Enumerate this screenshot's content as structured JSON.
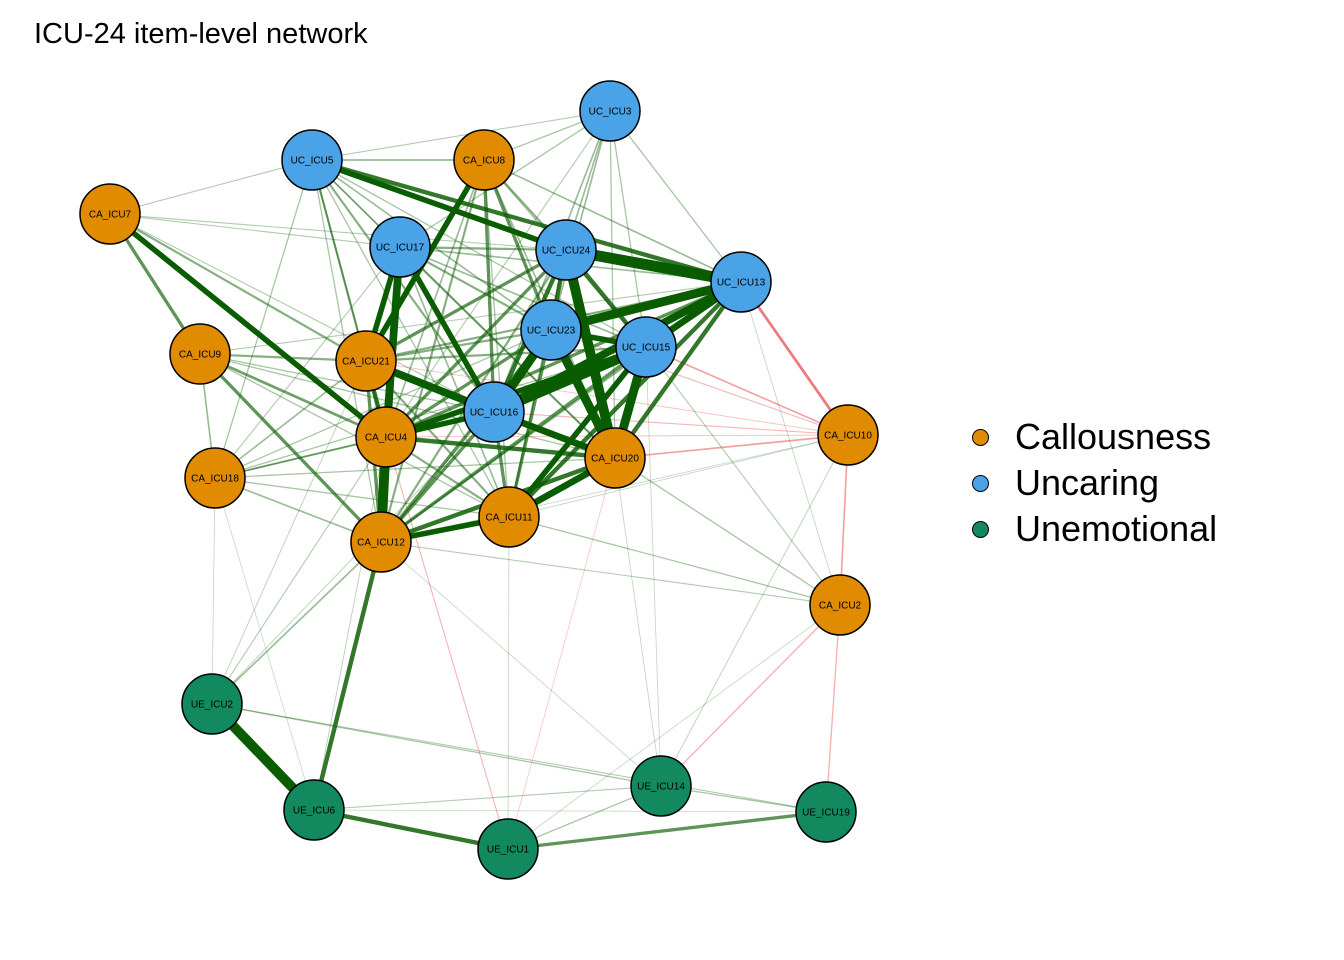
{
  "title": "ICU-24 item-level network",
  "groups": [
    {
      "id": "CA",
      "label": "Callousness",
      "color": "#E08B00"
    },
    {
      "id": "UC",
      "label": "Uncaring",
      "color": "#4AA3E6"
    },
    {
      "id": "UE",
      "label": "Unemotional",
      "color": "#12895F"
    }
  ],
  "edge_colors": {
    "positive": "#0A5C00",
    "negative": "#E3191C"
  },
  "nodes": [
    {
      "id": "UC_ICU3",
      "group": "UC"
    },
    {
      "id": "UC_ICU5",
      "group": "UC"
    },
    {
      "id": "CA_ICU8",
      "group": "CA"
    },
    {
      "id": "CA_ICU7",
      "group": "CA"
    },
    {
      "id": "UC_ICU17",
      "group": "UC"
    },
    {
      "id": "UC_ICU24",
      "group": "UC"
    },
    {
      "id": "UC_ICU13",
      "group": "UC"
    },
    {
      "id": "UC_ICU23",
      "group": "UC"
    },
    {
      "id": "UC_ICU15",
      "group": "UC"
    },
    {
      "id": "CA_ICU9",
      "group": "CA"
    },
    {
      "id": "CA_ICU21",
      "group": "CA"
    },
    {
      "id": "UC_ICU16",
      "group": "UC"
    },
    {
      "id": "CA_ICU4",
      "group": "CA"
    },
    {
      "id": "CA_ICU10",
      "group": "CA"
    },
    {
      "id": "CA_ICU20",
      "group": "CA"
    },
    {
      "id": "CA_ICU18",
      "group": "CA"
    },
    {
      "id": "CA_ICU11",
      "group": "CA"
    },
    {
      "id": "CA_ICU12",
      "group": "CA"
    },
    {
      "id": "CA_ICU2",
      "group": "CA"
    },
    {
      "id": "UE_ICU2",
      "group": "UE"
    },
    {
      "id": "UE_ICU14",
      "group": "UE"
    },
    {
      "id": "UE_ICU6",
      "group": "UE"
    },
    {
      "id": "UE_ICU19",
      "group": "UE"
    },
    {
      "id": "UE_ICU1",
      "group": "UE"
    }
  ],
  "edges": [
    {
      "from": "UC_ICU24",
      "to": "UC_ICU13",
      "sign": "positive",
      "weight": 10
    },
    {
      "from": "UC_ICU23",
      "to": "UC_ICU13",
      "sign": "positive",
      "weight": 8
    },
    {
      "from": "UC_ICU16",
      "to": "UC_ICU13",
      "sign": "positive",
      "weight": 7
    },
    {
      "from": "UC_ICU16",
      "to": "UC_ICU15",
      "sign": "positive",
      "weight": 9
    },
    {
      "from": "UC_ICU16",
      "to": "UC_ICU23",
      "sign": "positive",
      "weight": 8
    },
    {
      "from": "UC_ICU16",
      "to": "CA_ICU20",
      "sign": "positive",
      "weight": 6
    },
    {
      "from": "UC_ICU24",
      "to": "CA_ICU20",
      "sign": "positive",
      "weight": 9
    },
    {
      "from": "UC_ICU23",
      "to": "CA_ICU20",
      "sign": "positive",
      "weight": 8
    },
    {
      "from": "UC_ICU15",
      "to": "CA_ICU20",
      "sign": "positive",
      "weight": 8
    },
    {
      "from": "UC_ICU17",
      "to": "CA_ICU4",
      "sign": "positive",
      "weight": 7
    },
    {
      "from": "UC_ICU17",
      "to": "CA_ICU21",
      "sign": "positive",
      "weight": 5
    },
    {
      "from": "UC_ICU17",
      "to": "UC_ICU16",
      "sign": "positive",
      "weight": 5
    },
    {
      "from": "UC_ICU17",
      "to": "CA_ICU12",
      "sign": "positive",
      "weight": 5
    },
    {
      "from": "CA_ICU8",
      "to": "CA_ICU21",
      "sign": "positive",
      "weight": 5
    },
    {
      "from": "CA_ICU8",
      "to": "UC_ICU23",
      "sign": "positive",
      "weight": 3
    },
    {
      "from": "CA_ICU8",
      "to": "UC_ICU24",
      "sign": "positive",
      "weight": 2
    },
    {
      "from": "CA_ICU8",
      "to": "UC_ICU16",
      "sign": "positive",
      "weight": 3
    },
    {
      "from": "UC_ICU5",
      "to": "UC_ICU24",
      "sign": "positive",
      "weight": 5
    },
    {
      "from": "UC_ICU5",
      "to": "UC_ICU13",
      "sign": "positive",
      "weight": 4
    },
    {
      "from": "UC_ICU5",
      "to": "CA_ICU4",
      "sign": "positive",
      "weight": 2
    },
    {
      "from": "UC_ICU5",
      "to": "UC_ICU16",
      "sign": "positive",
      "weight": 2
    },
    {
      "from": "UC_ICU5",
      "to": "CA_ICU18",
      "sign": "positive",
      "weight": 1.2
    },
    {
      "from": "UC_ICU5",
      "to": "CA_ICU7",
      "sign": "positive",
      "weight": 1
    },
    {
      "from": "UC_ICU5",
      "to": "CA_ICU8",
      "sign": "positive",
      "weight": 1.5
    },
    {
      "from": "UC_ICU5",
      "to": "UC_ICU3",
      "sign": "positive",
      "weight": 1
    },
    {
      "from": "UC_ICU5",
      "to": "CA_ICU21",
      "sign": "positive",
      "weight": 1.5
    },
    {
      "from": "UC_ICU5",
      "to": "UC_ICU23",
      "sign": "positive",
      "weight": 1.5
    },
    {
      "from": "UC_ICU3",
      "to": "UC_ICU24",
      "sign": "positive",
      "weight": 1.5
    },
    {
      "from": "UC_ICU3",
      "to": "UC_ICU13",
      "sign": "positive",
      "weight": 1.2
    },
    {
      "from": "UC_ICU3",
      "to": "CA_ICU8",
      "sign": "positive",
      "weight": 1.2
    },
    {
      "from": "UC_ICU3",
      "to": "UC_ICU17",
      "sign": "positive",
      "weight": 1.2
    },
    {
      "from": "UC_ICU3",
      "to": "UC_ICU16",
      "sign": "positive",
      "weight": 1.5
    },
    {
      "from": "UC_ICU3",
      "to": "CA_ICU20",
      "sign": "positive",
      "weight": 1.2
    },
    {
      "from": "UC_ICU3",
      "to": "UC_ICU23",
      "sign": "positive",
      "weight": 1.5
    },
    {
      "from": "UC_ICU3",
      "to": "UC_ICU15",
      "sign": "positive",
      "weight": 1.2
    },
    {
      "from": "UC_ICU3",
      "to": "CA_ICU4",
      "sign": "positive",
      "weight": 1
    },
    {
      "from": "CA_ICU7",
      "to": "CA_ICU4",
      "sign": "positive",
      "weight": 5
    },
    {
      "from": "CA_ICU7",
      "to": "CA_ICU9",
      "sign": "positive",
      "weight": 3
    },
    {
      "from": "CA_ICU7",
      "to": "CA_ICU21",
      "sign": "positive",
      "weight": 2
    },
    {
      "from": "CA_ICU7",
      "to": "UC_ICU24",
      "sign": "positive",
      "weight": 1
    },
    {
      "from": "CA_ICU7",
      "to": "UC_ICU16",
      "sign": "positive",
      "weight": 1
    },
    {
      "from": "CA_ICU7",
      "to": "UC_ICU17",
      "sign": "positive",
      "weight": 1
    },
    {
      "from": "CA_ICU9",
      "to": "CA_ICU4",
      "sign": "positive",
      "weight": 2.5
    },
    {
      "from": "CA_ICU9",
      "to": "CA_ICU21",
      "sign": "positive",
      "weight": 2
    },
    {
      "from": "CA_ICU9",
      "to": "CA_ICU18",
      "sign": "positive",
      "weight": 1.5
    },
    {
      "from": "CA_ICU9",
      "to": "CA_ICU12",
      "sign": "positive",
      "weight": 3
    },
    {
      "from": "CA_ICU9",
      "to": "CA_ICU20",
      "sign": "positive",
      "weight": 1.2
    },
    {
      "from": "CA_ICU9",
      "to": "UC_ICU16",
      "sign": "positive",
      "weight": 1.2
    },
    {
      "from": "CA_ICU9",
      "to": "CA_ICU11",
      "sign": "positive",
      "weight": 1.2
    },
    {
      "from": "CA_ICU21",
      "to": "CA_ICU4",
      "sign": "positive",
      "weight": 4
    },
    {
      "from": "CA_ICU21",
      "to": "UC_ICU16",
      "sign": "positive",
      "weight": 7
    },
    {
      "from": "CA_ICU21",
      "to": "CA_ICU12",
      "sign": "positive",
      "weight": 3
    },
    {
      "from": "CA_ICU21",
      "to": "UC_ICU24",
      "sign": "positive",
      "weight": 3
    },
    {
      "from": "CA_ICU21",
      "to": "UC_ICU23",
      "sign": "positive",
      "weight": 2
    },
    {
      "from": "CA_ICU21",
      "to": "CA_ICU11",
      "sign": "positive",
      "weight": 2
    },
    {
      "from": "CA_ICU21",
      "to": "CA_ICU20",
      "sign": "positive",
      "weight": 2.5
    },
    {
      "from": "CA_ICU21",
      "to": "UC_ICU13",
      "sign": "positive",
      "weight": 2
    },
    {
      "from": "CA_ICU4",
      "to": "CA_ICU12",
      "sign": "positive",
      "weight": 9
    },
    {
      "from": "CA_ICU4",
      "to": "UC_ICU16",
      "sign": "positive",
      "weight": 5
    },
    {
      "from": "CA_ICU4",
      "to": "CA_ICU20",
      "sign": "positive",
      "weight": 4
    },
    {
      "from": "CA_ICU4",
      "to": "UC_ICU15",
      "sign": "positive",
      "weight": 5
    },
    {
      "from": "CA_ICU4",
      "to": "UC_ICU23",
      "sign": "positive",
      "weight": 3
    },
    {
      "from": "CA_ICU4",
      "to": "UC_ICU24",
      "sign": "positive",
      "weight": 3
    },
    {
      "from": "CA_ICU4",
      "to": "CA_ICU11",
      "sign": "positive",
      "weight": 2
    },
    {
      "from": "CA_ICU4",
      "to": "CA_ICU18",
      "sign": "positive",
      "weight": 1.5
    },
    {
      "from": "CA_ICU4",
      "to": "UC_ICU13",
      "sign": "positive",
      "weight": 3
    },
    {
      "from": "CA_ICU12",
      "to": "CA_ICU11",
      "sign": "positive",
      "weight": 5
    },
    {
      "from": "CA_ICU12",
      "to": "CA_ICU20",
      "sign": "positive",
      "weight": 4
    },
    {
      "from": "CA_ICU12",
      "to": "UC_ICU16",
      "sign": "positive",
      "weight": 3
    },
    {
      "from": "CA_ICU12",
      "to": "UC_ICU23",
      "sign": "positive",
      "weight": 3
    },
    {
      "from": "CA_ICU12",
      "to": "UC_ICU15",
      "sign": "positive",
      "weight": 3
    },
    {
      "from": "CA_ICU12",
      "to": "CA_ICU18",
      "sign": "positive",
      "weight": 1.5
    },
    {
      "from": "CA_ICU12",
      "to": "UE_ICU6",
      "sign": "positive",
      "weight": 4
    },
    {
      "from": "CA_ICU12",
      "to": "UE_ICU2",
      "sign": "positive",
      "weight": 1.5
    },
    {
      "from": "CA_ICU12",
      "to": "UC_ICU24",
      "sign": "positive",
      "weight": 2
    },
    {
      "from": "CA_ICU11",
      "to": "CA_ICU20",
      "sign": "positive",
      "weight": 6
    },
    {
      "from": "CA_ICU11",
      "to": "UC_ICU15",
      "sign": "positive",
      "weight": 5
    },
    {
      "from": "CA_ICU11",
      "to": "UC_ICU13",
      "sign": "positive",
      "weight": 4
    },
    {
      "from": "CA_ICU11",
      "to": "UC_ICU23",
      "sign": "positive",
      "weight": 3
    },
    {
      "from": "CA_ICU11",
      "to": "UC_ICU16",
      "sign": "positive",
      "weight": 3
    },
    {
      "from": "CA_ICU11",
      "to": "UC_ICU24",
      "sign": "positive",
      "weight": 2
    },
    {
      "from": "CA_ICU11",
      "to": "CA_ICU18",
      "sign": "positive",
      "weight": 1.2
    },
    {
      "from": "CA_ICU18",
      "to": "CA_ICU21",
      "sign": "positive",
      "weight": 1.5
    },
    {
      "from": "CA_ICU18",
      "to": "UC_ICU16",
      "sign": "positive",
      "weight": 1.5
    },
    {
      "from": "CA_ICU18",
      "to": "CA_ICU20",
      "sign": "positive",
      "weight": 1.2
    },
    {
      "from": "CA_ICU18",
      "to": "UC_ICU23",
      "sign": "positive",
      "weight": 1.2
    },
    {
      "from": "CA_ICU18",
      "to": "UC_ICU15",
      "sign": "positive",
      "weight": 1.2
    },
    {
      "from": "CA_ICU18",
      "to": "UC_ICU17",
      "sign": "positive",
      "weight": 1
    },
    {
      "from": "UC_ICU24",
      "to": "UC_ICU23",
      "sign": "positive",
      "weight": 4
    },
    {
      "from": "UC_ICU24",
      "to": "UC_ICU15",
      "sign": "positive",
      "weight": 4
    },
    {
      "from": "UC_ICU24",
      "to": "UC_ICU16",
      "sign": "positive",
      "weight": 4
    },
    {
      "from": "UC_ICU24",
      "to": "UC_ICU17",
      "sign": "positive",
      "weight": 2
    },
    {
      "from": "UC_ICU23",
      "to": "UC_ICU15",
      "sign": "positive",
      "weight": 5
    },
    {
      "from": "UC_ICU23",
      "to": "UC_ICU17",
      "sign": "positive",
      "weight": 2
    },
    {
      "from": "UC_ICU15",
      "to": "UC_ICU13",
      "sign": "positive",
      "weight": 6
    },
    {
      "from": "UC_ICU13",
      "to": "CA_ICU20",
      "sign": "positive",
      "weight": 4
    },
    {
      "from": "UC_ICU13",
      "to": "CA_ICU10",
      "sign": "negative",
      "weight": 2.5
    },
    {
      "from": "UC_ICU15",
      "to": "CA_ICU10",
      "sign": "negative",
      "weight": 1.5
    },
    {
      "from": "UC_ICU23",
      "to": "CA_ICU10",
      "sign": "negative",
      "weight": 1
    },
    {
      "from": "UC_ICU16",
      "to": "CA_ICU10",
      "sign": "negative",
      "weight": 1
    },
    {
      "from": "CA_ICU20",
      "to": "CA_ICU10",
      "sign": "negative",
      "weight": 1.5
    },
    {
      "from": "CA_ICU4",
      "to": "CA_ICU10",
      "sign": "negative",
      "weight": 0.8
    },
    {
      "from": "CA_ICU21",
      "to": "CA_ICU10",
      "sign": "negative",
      "weight": 0.8
    },
    {
      "from": "CA_ICU10",
      "to": "CA_ICU2",
      "sign": "negative",
      "weight": 1.5
    },
    {
      "from": "CA_ICU10",
      "to": "UE_ICU14",
      "sign": "positive",
      "weight": 0.8
    },
    {
      "from": "CA_ICU10",
      "to": "CA_ICU11",
      "sign": "positive",
      "weight": 0.7
    },
    {
      "from": "CA_ICU10",
      "to": "CA_ICU12",
      "sign": "positive",
      "weight": 0.6
    },
    {
      "from": "CA_ICU2",
      "to": "CA_ICU20",
      "sign": "positive",
      "weight": 1.2
    },
    {
      "from": "CA_ICU2",
      "to": "CA_ICU11",
      "sign": "positive",
      "weight": 1.2
    },
    {
      "from": "CA_ICU2",
      "to": "CA_ICU12",
      "sign": "positive",
      "weight": 1
    },
    {
      "from": "CA_ICU2",
      "to": "UC_ICU15",
      "sign": "positive",
      "weight": 1
    },
    {
      "from": "CA_ICU2",
      "to": "UC_ICU13",
      "sign": "positive",
      "weight": 0.7
    },
    {
      "from": "CA_ICU2",
      "to": "UE_ICU14",
      "sign": "negative",
      "weight": 1.2
    },
    {
      "from": "CA_ICU2",
      "to": "UE_ICU19",
      "sign": "negative",
      "weight": 1.2
    },
    {
      "from": "CA_ICU2",
      "to": "UE_ICU1",
      "sign": "positive",
      "weight": 0.6
    },
    {
      "from": "UE_ICU2",
      "to": "UE_ICU6",
      "sign": "positive",
      "weight": 9
    },
    {
      "from": "UE_ICU2",
      "to": "UE_ICU14",
      "sign": "positive",
      "weight": 1.2
    },
    {
      "from": "UE_ICU2",
      "to": "UE_ICU19",
      "sign": "positive",
      "weight": 1
    },
    {
      "from": "UE_ICU2",
      "to": "CA_ICU4",
      "sign": "positive",
      "weight": 1
    },
    {
      "from": "UE_ICU2",
      "to": "CA_ICU21",
      "sign": "positive",
      "weight": 0.8
    },
    {
      "from": "UE_ICU2",
      "to": "UC_ICU16",
      "sign": "positive",
      "weight": 0.8
    },
    {
      "from": "UE_ICU6",
      "to": "UE_ICU1",
      "sign": "positive",
      "weight": 4
    },
    {
      "from": "UE_ICU6",
      "to": "UE_ICU14",
      "sign": "positive",
      "weight": 1
    },
    {
      "from": "UE_ICU6",
      "to": "CA_ICU4",
      "sign": "positive",
      "weight": 0.8
    },
    {
      "from": "UE_ICU6",
      "to": "UE_ICU19",
      "sign": "positive",
      "weight": 0.6
    },
    {
      "from": "UE_ICU1",
      "to": "UE_ICU19",
      "sign": "positive",
      "weight": 3
    },
    {
      "from": "UE_ICU1",
      "to": "UE_ICU14",
      "sign": "positive",
      "weight": 1.2
    },
    {
      "from": "UE_ICU1",
      "to": "CA_ICU4",
      "sign": "negative",
      "weight": 1
    },
    {
      "from": "UE_ICU1",
      "to": "CA_ICU20",
      "sign": "negative",
      "weight": 0.6
    },
    {
      "from": "UE_ICU1",
      "to": "CA_ICU11",
      "sign": "positive",
      "weight": 0.6
    },
    {
      "from": "UE_ICU14",
      "to": "UE_ICU19",
      "sign": "positive",
      "weight": 1.2
    },
    {
      "from": "UE_ICU14",
      "to": "CA_ICU20",
      "sign": "positive",
      "weight": 0.7
    },
    {
      "from": "UE_ICU14",
      "to": "CA_ICU12",
      "sign": "positive",
      "weight": 0.6
    },
    {
      "from": "UE_ICU14",
      "to": "UC_ICU15",
      "sign": "positive",
      "weight": 0.6
    },
    {
      "from": "CA_ICU18",
      "to": "UE_ICU2",
      "sign": "positive",
      "weight": 0.6
    },
    {
      "from": "CA_ICU18",
      "to": "UE_ICU6",
      "sign": "positive",
      "weight": 0.5
    },
    {
      "from": "UC_ICU13",
      "to": "UC_ICU17",
      "sign": "positive",
      "weight": 1.5
    },
    {
      "from": "UC_ICU13",
      "to": "CA_ICU9",
      "sign": "positive",
      "weight": 1
    },
    {
      "from": "UC_ICU13",
      "to": "CA_ICU12",
      "sign": "positive",
      "weight": 2
    },
    {
      "from": "UC_ICU15",
      "to": "CA_ICU21",
      "sign": "positive",
      "weight": 2
    },
    {
      "from": "UC_ICU15",
      "to": "UC_ICU17",
      "sign": "positive",
      "weight": 1.5
    },
    {
      "from": "CA_ICU8",
      "to": "UC_ICU13",
      "sign": "positive",
      "weight": 1.5
    },
    {
      "from": "CA_ICU8",
      "to": "CA_ICU4",
      "sign": "positive",
      "weight": 1.5
    },
    {
      "from": "CA_ICU8",
      "to": "CA_ICU12",
      "sign": "positive",
      "weight": 2
    },
    {
      "from": "CA_ICU8",
      "to": "CA_ICU20",
      "sign": "positive",
      "weight": 1.5
    },
    {
      "from": "CA_ICU8",
      "to": "CA_ICU11",
      "sign": "positive",
      "weight": 1.2
    },
    {
      "from": "CA_ICU8",
      "to": "UC_ICU15",
      "sign": "positive",
      "weight": 1.2
    },
    {
      "from": "UC_ICU17",
      "to": "CA_ICU20",
      "sign": "positive",
      "weight": 2
    },
    {
      "from": "UC_ICU17",
      "to": "CA_ICU11",
      "sign": "positive",
      "weight": 1.5
    },
    {
      "from": "UC_ICU5",
      "to": "CA_ICU20",
      "sign": "positive",
      "weight": 1.2
    },
    {
      "from": "UC_ICU5",
      "to": "CA_ICU11",
      "sign": "positive",
      "weight": 1.2
    },
    {
      "from": "UC_ICU5",
      "to": "UC_ICU15",
      "sign": "positive",
      "weight": 1.2
    },
    {
      "from": "UC_ICU5",
      "to": "CA_ICU12",
      "sign": "positive",
      "weight": 1.2
    },
    {
      "from": "UC_ICU5",
      "to": "UC_ICU17",
      "sign": "positive",
      "weight": 1.5
    }
  ]
}
